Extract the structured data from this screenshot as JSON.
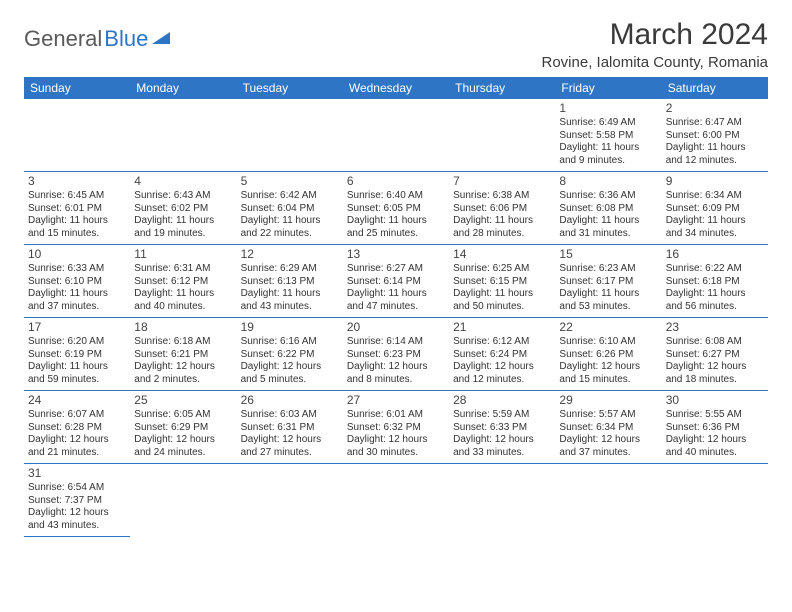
{
  "logo": {
    "text1": "General",
    "text2": "Blue"
  },
  "title": "March 2024",
  "location": "Rovine, Ialomita County, Romania",
  "colors": {
    "header_bg": "#2e75c6",
    "header_fg": "#ffffff",
    "rule": "#2e75c6"
  },
  "day_headers": [
    "Sunday",
    "Monday",
    "Tuesday",
    "Wednesday",
    "Thursday",
    "Friday",
    "Saturday"
  ],
  "weeks": [
    [
      null,
      null,
      null,
      null,
      null,
      {
        "n": "1",
        "sr": "Sunrise: 6:49 AM",
        "ss": "Sunset: 5:58 PM",
        "d1": "Daylight: 11 hours",
        "d2": "and 9 minutes."
      },
      {
        "n": "2",
        "sr": "Sunrise: 6:47 AM",
        "ss": "Sunset: 6:00 PM",
        "d1": "Daylight: 11 hours",
        "d2": "and 12 minutes."
      }
    ],
    [
      {
        "n": "3",
        "sr": "Sunrise: 6:45 AM",
        "ss": "Sunset: 6:01 PM",
        "d1": "Daylight: 11 hours",
        "d2": "and 15 minutes."
      },
      {
        "n": "4",
        "sr": "Sunrise: 6:43 AM",
        "ss": "Sunset: 6:02 PM",
        "d1": "Daylight: 11 hours",
        "d2": "and 19 minutes."
      },
      {
        "n": "5",
        "sr": "Sunrise: 6:42 AM",
        "ss": "Sunset: 6:04 PM",
        "d1": "Daylight: 11 hours",
        "d2": "and 22 minutes."
      },
      {
        "n": "6",
        "sr": "Sunrise: 6:40 AM",
        "ss": "Sunset: 6:05 PM",
        "d1": "Daylight: 11 hours",
        "d2": "and 25 minutes."
      },
      {
        "n": "7",
        "sr": "Sunrise: 6:38 AM",
        "ss": "Sunset: 6:06 PM",
        "d1": "Daylight: 11 hours",
        "d2": "and 28 minutes."
      },
      {
        "n": "8",
        "sr": "Sunrise: 6:36 AM",
        "ss": "Sunset: 6:08 PM",
        "d1": "Daylight: 11 hours",
        "d2": "and 31 minutes."
      },
      {
        "n": "9",
        "sr": "Sunrise: 6:34 AM",
        "ss": "Sunset: 6:09 PM",
        "d1": "Daylight: 11 hours",
        "d2": "and 34 minutes."
      }
    ],
    [
      {
        "n": "10",
        "sr": "Sunrise: 6:33 AM",
        "ss": "Sunset: 6:10 PM",
        "d1": "Daylight: 11 hours",
        "d2": "and 37 minutes."
      },
      {
        "n": "11",
        "sr": "Sunrise: 6:31 AM",
        "ss": "Sunset: 6:12 PM",
        "d1": "Daylight: 11 hours",
        "d2": "and 40 minutes."
      },
      {
        "n": "12",
        "sr": "Sunrise: 6:29 AM",
        "ss": "Sunset: 6:13 PM",
        "d1": "Daylight: 11 hours",
        "d2": "and 43 minutes."
      },
      {
        "n": "13",
        "sr": "Sunrise: 6:27 AM",
        "ss": "Sunset: 6:14 PM",
        "d1": "Daylight: 11 hours",
        "d2": "and 47 minutes."
      },
      {
        "n": "14",
        "sr": "Sunrise: 6:25 AM",
        "ss": "Sunset: 6:15 PM",
        "d1": "Daylight: 11 hours",
        "d2": "and 50 minutes."
      },
      {
        "n": "15",
        "sr": "Sunrise: 6:23 AM",
        "ss": "Sunset: 6:17 PM",
        "d1": "Daylight: 11 hours",
        "d2": "and 53 minutes."
      },
      {
        "n": "16",
        "sr": "Sunrise: 6:22 AM",
        "ss": "Sunset: 6:18 PM",
        "d1": "Daylight: 11 hours",
        "d2": "and 56 minutes."
      }
    ],
    [
      {
        "n": "17",
        "sr": "Sunrise: 6:20 AM",
        "ss": "Sunset: 6:19 PM",
        "d1": "Daylight: 11 hours",
        "d2": "and 59 minutes."
      },
      {
        "n": "18",
        "sr": "Sunrise: 6:18 AM",
        "ss": "Sunset: 6:21 PM",
        "d1": "Daylight: 12 hours",
        "d2": "and 2 minutes."
      },
      {
        "n": "19",
        "sr": "Sunrise: 6:16 AM",
        "ss": "Sunset: 6:22 PM",
        "d1": "Daylight: 12 hours",
        "d2": "and 5 minutes."
      },
      {
        "n": "20",
        "sr": "Sunrise: 6:14 AM",
        "ss": "Sunset: 6:23 PM",
        "d1": "Daylight: 12 hours",
        "d2": "and 8 minutes."
      },
      {
        "n": "21",
        "sr": "Sunrise: 6:12 AM",
        "ss": "Sunset: 6:24 PM",
        "d1": "Daylight: 12 hours",
        "d2": "and 12 minutes."
      },
      {
        "n": "22",
        "sr": "Sunrise: 6:10 AM",
        "ss": "Sunset: 6:26 PM",
        "d1": "Daylight: 12 hours",
        "d2": "and 15 minutes."
      },
      {
        "n": "23",
        "sr": "Sunrise: 6:08 AM",
        "ss": "Sunset: 6:27 PM",
        "d1": "Daylight: 12 hours",
        "d2": "and 18 minutes."
      }
    ],
    [
      {
        "n": "24",
        "sr": "Sunrise: 6:07 AM",
        "ss": "Sunset: 6:28 PM",
        "d1": "Daylight: 12 hours",
        "d2": "and 21 minutes."
      },
      {
        "n": "25",
        "sr": "Sunrise: 6:05 AM",
        "ss": "Sunset: 6:29 PM",
        "d1": "Daylight: 12 hours",
        "d2": "and 24 minutes."
      },
      {
        "n": "26",
        "sr": "Sunrise: 6:03 AM",
        "ss": "Sunset: 6:31 PM",
        "d1": "Daylight: 12 hours",
        "d2": "and 27 minutes."
      },
      {
        "n": "27",
        "sr": "Sunrise: 6:01 AM",
        "ss": "Sunset: 6:32 PM",
        "d1": "Daylight: 12 hours",
        "d2": "and 30 minutes."
      },
      {
        "n": "28",
        "sr": "Sunrise: 5:59 AM",
        "ss": "Sunset: 6:33 PM",
        "d1": "Daylight: 12 hours",
        "d2": "and 33 minutes."
      },
      {
        "n": "29",
        "sr": "Sunrise: 5:57 AM",
        "ss": "Sunset: 6:34 PM",
        "d1": "Daylight: 12 hours",
        "d2": "and 37 minutes."
      },
      {
        "n": "30",
        "sr": "Sunrise: 5:55 AM",
        "ss": "Sunset: 6:36 PM",
        "d1": "Daylight: 12 hours",
        "d2": "and 40 minutes."
      }
    ],
    [
      {
        "n": "31",
        "sr": "Sunrise: 6:54 AM",
        "ss": "Sunset: 7:37 PM",
        "d1": "Daylight: 12 hours",
        "d2": "and 43 minutes."
      },
      null,
      null,
      null,
      null,
      null,
      null
    ]
  ]
}
